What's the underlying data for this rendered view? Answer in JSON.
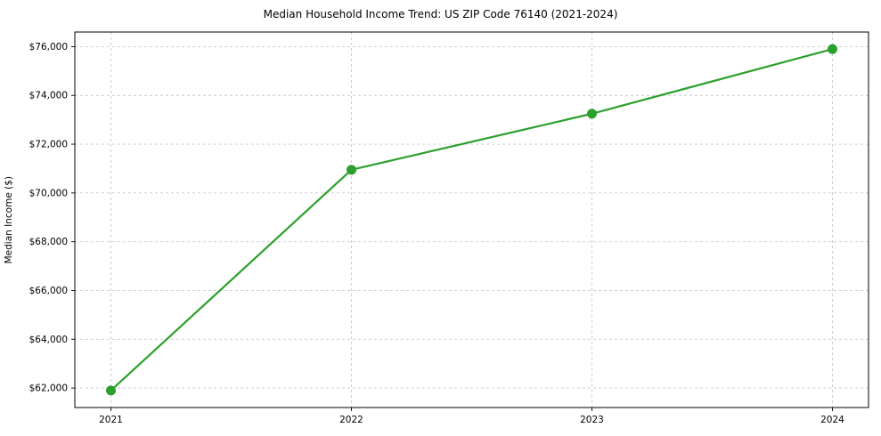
{
  "figure": {
    "title": "Median Household Income Trend: US ZIP Code 76140 (2021-2024)",
    "ylabel": "Median Income ($)"
  },
  "chart_data": {
    "type": "line",
    "title": "Median Household Income Trend: US ZIP Code 76140 (2021-2024)",
    "xlabel": "",
    "ylabel": "Median Income ($)",
    "series_name": "Median Household Income",
    "x": [
      2021,
      2022,
      2023,
      2024
    ],
    "values": [
      61900,
      70950,
      73250,
      75900
    ],
    "xtick_labels": [
      "2021",
      "2022",
      "2023",
      "2024"
    ],
    "yticks": [
      62000,
      64000,
      66000,
      68000,
      70000,
      72000,
      74000,
      76000
    ],
    "ytick_labels": [
      "$62,000",
      "$64,000",
      "$66,000",
      "$68,000",
      "$70,000",
      "$72,000",
      "$74,000",
      "$76,000"
    ],
    "xlim": [
      2020.85,
      2024.15
    ],
    "ylim": [
      61200,
      76600
    ],
    "grid": true,
    "grid_style": "dashed",
    "grid_color": "#c9c9c9",
    "line_color": "#2ca02c",
    "marker": "o",
    "marker_size": 11,
    "legend": "none",
    "background": "#ffffff"
  }
}
